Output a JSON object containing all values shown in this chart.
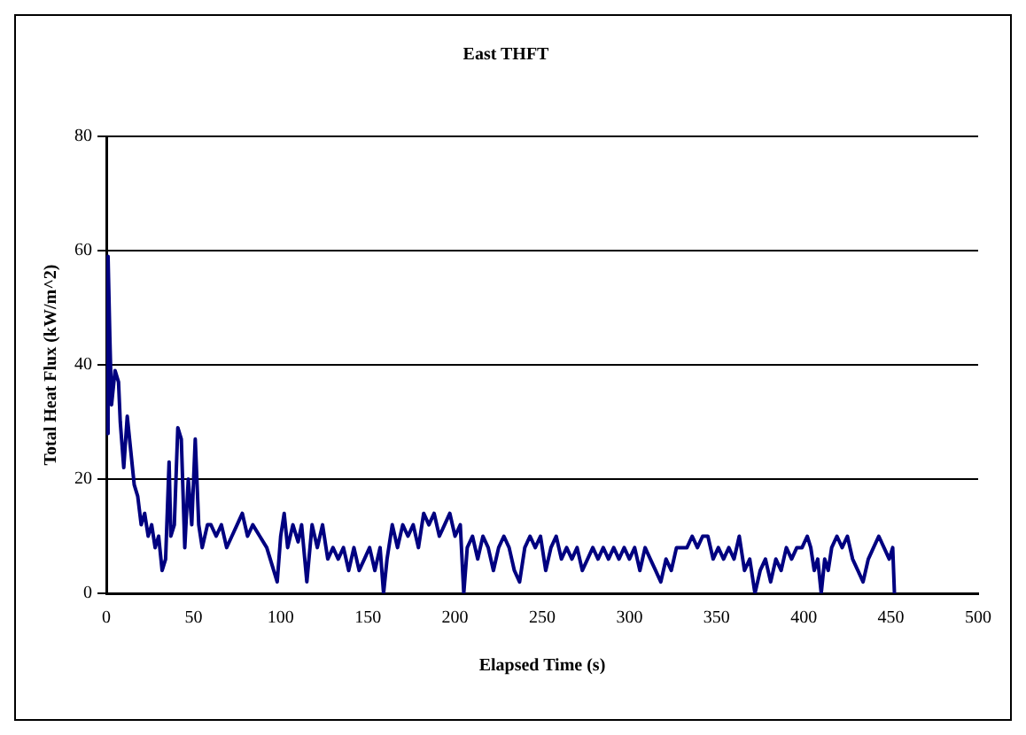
{
  "chart_data": {
    "type": "line",
    "title": "East THFT",
    "xlabel": "Elapsed Time (s)",
    "ylabel": "Total Heat Flux (kW/m^2)",
    "x": [
      0,
      1,
      2,
      3,
      5,
      7,
      8,
      10,
      12,
      14,
      16,
      18,
      20,
      22,
      24,
      26,
      28,
      30,
      32,
      34,
      36,
      37,
      39,
      41,
      43,
      45,
      47,
      49,
      51,
      53,
      55,
      58,
      60,
      63,
      66,
      69,
      72,
      75,
      78,
      81,
      84,
      88,
      92,
      96,
      98,
      100,
      102,
      104,
      107,
      110,
      112,
      115,
      118,
      121,
      124,
      127,
      130,
      133,
      136,
      139,
      142,
      145,
      148,
      151,
      154,
      157,
      159,
      161,
      164,
      167,
      170,
      173,
      176,
      179,
      182,
      185,
      188,
      191,
      194,
      197,
      200,
      203,
      205,
      207,
      210,
      213,
      216,
      219,
      222,
      225,
      228,
      231,
      234,
      237,
      240,
      243,
      246,
      249,
      252,
      255,
      258,
      261,
      264,
      267,
      270,
      273,
      276,
      279,
      282,
      285,
      288,
      291,
      294,
      297,
      300,
      303,
      306,
      309,
      312,
      315,
      318,
      321,
      324,
      327,
      330,
      333,
      336,
      339,
      342,
      345,
      348,
      351,
      354,
      357,
      360,
      363,
      366,
      369,
      372,
      375,
      378,
      381,
      384,
      387,
      390,
      393,
      396,
      399,
      402,
      404,
      406,
      408,
      410,
      412,
      414,
      416,
      419,
      422,
      425,
      428,
      431,
      434,
      437,
      440,
      443,
      446,
      449,
      451,
      452
    ],
    "series": [
      {
        "color": "#000080",
        "values": [
          28,
          59,
          45,
          33,
          39,
          37,
          30,
          22,
          31,
          25,
          19,
          17,
          12,
          14,
          10,
          12,
          8,
          10,
          4,
          6,
          23,
          10,
          12,
          29,
          27,
          8,
          20,
          12,
          27,
          12,
          8,
          12,
          12,
          10,
          12,
          8,
          10,
          12,
          14,
          10,
          12,
          10,
          8,
          4,
          2,
          10,
          14,
          8,
          12,
          9,
          12,
          2,
          12,
          8,
          12,
          6,
          8,
          6,
          8,
          4,
          8,
          4,
          6,
          8,
          4,
          8,
          0,
          6,
          12,
          8,
          12,
          10,
          12,
          8,
          14,
          12,
          14,
          10,
          12,
          14,
          10,
          12,
          0,
          8,
          10,
          6,
          10,
          8,
          4,
          8,
          10,
          8,
          4,
          2,
          8,
          10,
          8,
          10,
          4,
          8,
          10,
          6,
          8,
          6,
          8,
          4,
          6,
          8,
          6,
          8,
          6,
          8,
          6,
          8,
          6,
          8,
          4,
          8,
          6,
          4,
          2,
          6,
          4,
          8,
          8,
          8,
          10,
          8,
          10,
          10,
          6,
          8,
          6,
          8,
          6,
          10,
          4,
          6,
          0,
          4,
          6,
          2,
          6,
          4,
          8,
          6,
          8,
          8,
          10,
          8,
          4,
          6,
          0,
          6,
          4,
          8,
          10,
          8,
          10,
          6,
          4,
          2,
          6,
          8,
          10,
          8,
          6,
          8,
          0
        ]
      }
    ],
    "xlim": [
      0,
      500
    ],
    "xticks": [
      0,
      50,
      100,
      150,
      200,
      250,
      300,
      350,
      400,
      450,
      500
    ],
    "ylim": [
      0,
      80
    ],
    "yticks": [
      0,
      20,
      40,
      60,
      80
    ],
    "grid": "y",
    "legend": false,
    "marker": "none",
    "line_style": "solid"
  }
}
